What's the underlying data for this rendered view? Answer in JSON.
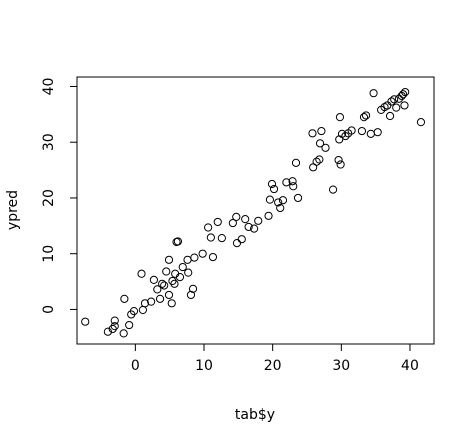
{
  "chart_data": {
    "type": "scatter",
    "title": "",
    "xlabel": "tab$y",
    "ylabel": "ypred",
    "xlim": [
      -8.5,
      43.5
    ],
    "ylim": [
      -6.2,
      41.7
    ],
    "xticks": [
      0,
      10,
      20,
      30,
      40
    ],
    "yticks": [
      0,
      10,
      20,
      30,
      40
    ],
    "grid": false,
    "points": [
      [
        -7.3,
        -2.2
      ],
      [
        -4,
        -4
      ],
      [
        -3.3,
        -3.5
      ],
      [
        -3,
        -3
      ],
      [
        -3,
        -2
      ],
      [
        -1.7,
        -4.3
      ],
      [
        -1.6,
        1.9
      ],
      [
        -0.9,
        -2.8
      ],
      [
        -0.6,
        -0.9
      ],
      [
        -0.2,
        -0.3
      ],
      [
        0.9,
        6.4
      ],
      [
        1.1,
        -0.1
      ],
      [
        1.4,
        1.1
      ],
      [
        2.3,
        1.4
      ],
      [
        2.7,
        5.3
      ],
      [
        3.2,
        3.6
      ],
      [
        3.6,
        1.9
      ],
      [
        3.9,
        4.6
      ],
      [
        4.2,
        4.3
      ],
      [
        4.5,
        6.8
      ],
      [
        4.9,
        8.9
      ],
      [
        4.9,
        2.6
      ],
      [
        5.3,
        1.1
      ],
      [
        5.4,
        5.1
      ],
      [
        5.7,
        4.6
      ],
      [
        5.8,
        6.4
      ],
      [
        6.0,
        12.1
      ],
      [
        6.2,
        12.2
      ],
      [
        6.5,
        5.8
      ],
      [
        6.9,
        7.6
      ],
      [
        7.6,
        8.9
      ],
      [
        7.7,
        6.6
      ],
      [
        8.1,
        2.6
      ],
      [
        8.4,
        3.7
      ],
      [
        8.6,
        9.3
      ],
      [
        9.8,
        10.0
      ],
      [
        10.6,
        14.7
      ],
      [
        11.0,
        12.9
      ],
      [
        11.3,
        9.4
      ],
      [
        12.0,
        15.7
      ],
      [
        12.6,
        12.8
      ],
      [
        14.2,
        15.5
      ],
      [
        14.7,
        16.6
      ],
      [
        14.8,
        11.9
      ],
      [
        15.5,
        12.6
      ],
      [
        16.0,
        16.2
      ],
      [
        16.5,
        14.8
      ],
      [
        17.3,
        14.5
      ],
      [
        17.9,
        15.9
      ],
      [
        19.4,
        16.8
      ],
      [
        19.6,
        19.7
      ],
      [
        19.9,
        22.5
      ],
      [
        20.2,
        21.6
      ],
      [
        20.8,
        19.2
      ],
      [
        21.1,
        18.2
      ],
      [
        21.5,
        19.6
      ],
      [
        22.0,
        22.8
      ],
      [
        22.9,
        23.0
      ],
      [
        23.0,
        22.1
      ],
      [
        23.4,
        26.3
      ],
      [
        23.7,
        20.0
      ],
      [
        25.8,
        31.6
      ],
      [
        25.9,
        25.5
      ],
      [
        26.4,
        26.5
      ],
      [
        26.8,
        26.9
      ],
      [
        26.9,
        29.8
      ],
      [
        27.1,
        32.0
      ],
      [
        27.7,
        29.0
      ],
      [
        28.8,
        21.5
      ],
      [
        29.6,
        26.8
      ],
      [
        29.7,
        30.5
      ],
      [
        29.8,
        34.5
      ],
      [
        29.9,
        26.0
      ],
      [
        30.1,
        31.5
      ],
      [
        30.6,
        31.1
      ],
      [
        31.0,
        31.6
      ],
      [
        31.5,
        32.1
      ],
      [
        33.0,
        32.0
      ],
      [
        33.3,
        34.5
      ],
      [
        33.6,
        34.8
      ],
      [
        34.3,
        31.5
      ],
      [
        34.7,
        38.8
      ],
      [
        35.3,
        31.8
      ],
      [
        35.8,
        35.8
      ],
      [
        36.3,
        36.3
      ],
      [
        36.7,
        36.6
      ],
      [
        37.1,
        34.7
      ],
      [
        37.3,
        37.3
      ],
      [
        37.7,
        37.7
      ],
      [
        38.0,
        36.2
      ],
      [
        38.4,
        37.8
      ],
      [
        38.8,
        38.3
      ],
      [
        39.0,
        38.6
      ],
      [
        39.2,
        36.6
      ],
      [
        39.3,
        39.0
      ],
      [
        41.6,
        33.6
      ]
    ]
  }
}
